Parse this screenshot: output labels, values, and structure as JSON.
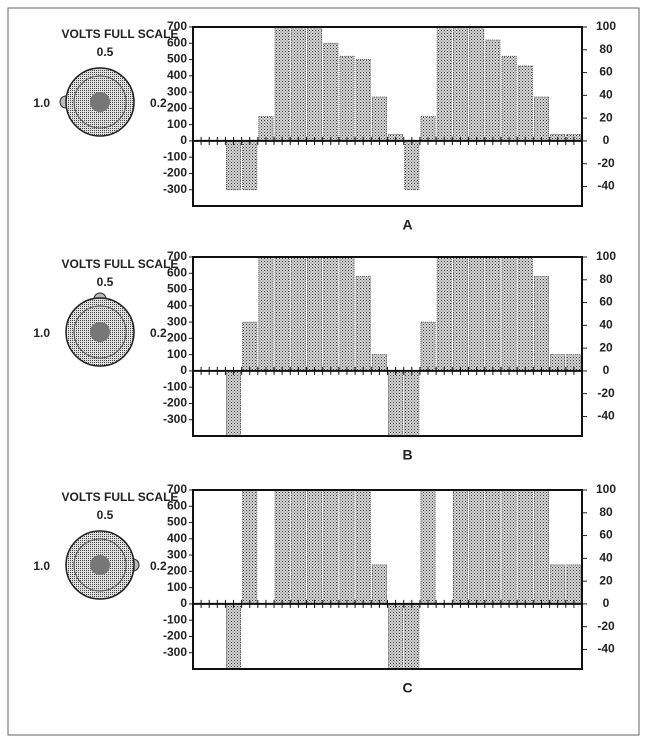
{
  "chart_data": [
    {
      "type": "bar",
      "label": "A",
      "dial_title": "VOLTS FULL SCALE",
      "dial_labels": [
        "0.5",
        "1.0",
        "0.2"
      ],
      "categories": [
        null,
        null,
        null,
        null,
        null,
        null,
        null,
        null,
        null,
        null,
        null,
        null,
        null,
        null,
        null,
        null,
        null,
        null,
        null,
        null,
        null,
        null,
        null,
        null
      ],
      "values": [
        0,
        0,
        -300,
        -300,
        150,
        700,
        700,
        700,
        600,
        520,
        500,
        270,
        40,
        -300,
        150,
        700,
        700,
        700,
        620,
        520,
        460,
        270,
        40,
        40
      ],
      "color": "#333333",
      "ylim": [
        -400,
        700
      ],
      "yticks": [
        700,
        600,
        500,
        400,
        300,
        200,
        100,
        0,
        -100,
        -200,
        -300
      ],
      "y2lim": [
        -57.14,
        100
      ],
      "y2ticks": [
        100,
        80,
        60,
        40,
        20,
        0,
        -20,
        -40
      ]
    },
    {
      "type": "bar",
      "label": "B",
      "dial_title": "VOLTS FULL SCALE",
      "dial_labels": [
        "0.5",
        "1.0",
        "0.2"
      ],
      "categories": [
        null,
        null,
        null,
        null,
        null,
        null,
        null,
        null,
        null,
        null,
        null,
        null,
        null,
        null,
        null,
        null,
        null,
        null,
        null,
        null,
        null,
        null,
        null,
        null
      ],
      "values": [
        0,
        0,
        -400,
        300,
        700,
        700,
        700,
        700,
        700,
        700,
        580,
        100,
        -400,
        -400,
        300,
        700,
        700,
        700,
        700,
        700,
        700,
        580,
        100,
        100
      ],
      "color": "#333333",
      "ylim": [
        -400,
        700
      ],
      "yticks": [
        700,
        600,
        500,
        400,
        300,
        200,
        100,
        0,
        -100,
        -200,
        -300
      ],
      "y2lim": [
        -57.14,
        100
      ],
      "y2ticks": [
        100,
        80,
        60,
        40,
        20,
        0,
        -20,
        -40
      ]
    },
    {
      "type": "bar",
      "label": "C",
      "dial_title": "VOLTS FULL SCALE",
      "dial_labels": [
        "0.5",
        "1.0",
        "0.2"
      ],
      "categories": [
        null,
        null,
        null,
        null,
        null,
        null,
        null,
        null,
        null,
        null,
        null,
        null,
        null,
        null,
        null,
        null,
        null,
        null,
        null,
        null,
        null,
        null,
        null,
        null
      ],
      "values": [
        0,
        0,
        -400,
        700,
        0,
        700,
        700,
        700,
        700,
        700,
        700,
        240,
        -400,
        -400,
        700,
        0,
        700,
        700,
        700,
        700,
        700,
        700,
        240,
        240
      ],
      "color": "#333333",
      "ylim": [
        -400,
        700
      ],
      "yticks": [
        700,
        600,
        500,
        400,
        300,
        200,
        100,
        0,
        -100,
        -200,
        -300
      ],
      "y2lim": [
        -57.14,
        100
      ],
      "y2ticks": [
        100,
        80,
        60,
        40,
        20,
        0,
        -20,
        -40
      ]
    }
  ]
}
